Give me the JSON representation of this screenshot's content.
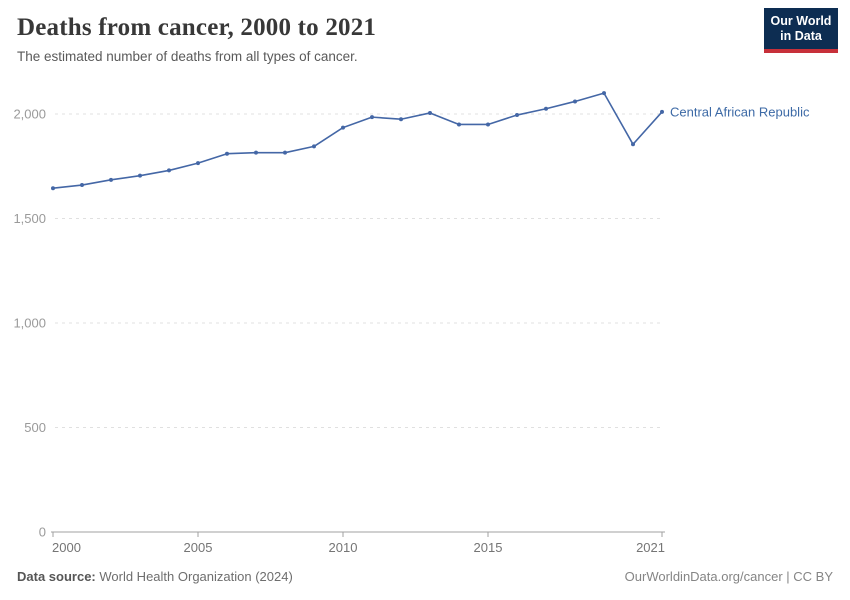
{
  "header": {
    "title": "Deaths from cancer, 2000 to 2021",
    "subtitle": "The estimated number of deaths from all types of cancer.",
    "logo": {
      "line1": "Our World",
      "line2": "in Data",
      "bg_color": "#0d2d52",
      "accent_color": "#c7303a",
      "text_color": "#ffffff"
    }
  },
  "chart_data": {
    "type": "line",
    "title": "Deaths from cancer, 2000 to 2021",
    "xlabel": "",
    "ylabel": "",
    "x": [
      2000,
      2001,
      2002,
      2003,
      2004,
      2005,
      2006,
      2007,
      2008,
      2009,
      2010,
      2011,
      2012,
      2013,
      2014,
      2015,
      2016,
      2017,
      2018,
      2019,
      2020,
      2021
    ],
    "series": [
      {
        "name": "Central African Republic",
        "color": "#4467a6",
        "label_color": "#3d6aa6",
        "values": [
          1645,
          1660,
          1685,
          1705,
          1730,
          1765,
          1810,
          1815,
          1815,
          1845,
          1935,
          1985,
          1975,
          2005,
          1950,
          1950,
          1995,
          2025,
          2060,
          2100,
          1855,
          2010
        ]
      }
    ],
    "x_ticks": [
      2000,
      2005,
      2010,
      2015,
      2021
    ],
    "y_ticks": [
      0,
      500,
      1000,
      1500,
      2000
    ],
    "xlim": [
      2000,
      2021
    ],
    "ylim": [
      0,
      2000
    ],
    "grid": "horizontal-dashed",
    "legend_position": "end-of-line-label",
    "marker": "dot"
  },
  "footer": {
    "source_label": "Data source:",
    "source_value": " World Health Organization (2024)",
    "attribution": "OurWorldinData.org/cancer | CC BY"
  }
}
